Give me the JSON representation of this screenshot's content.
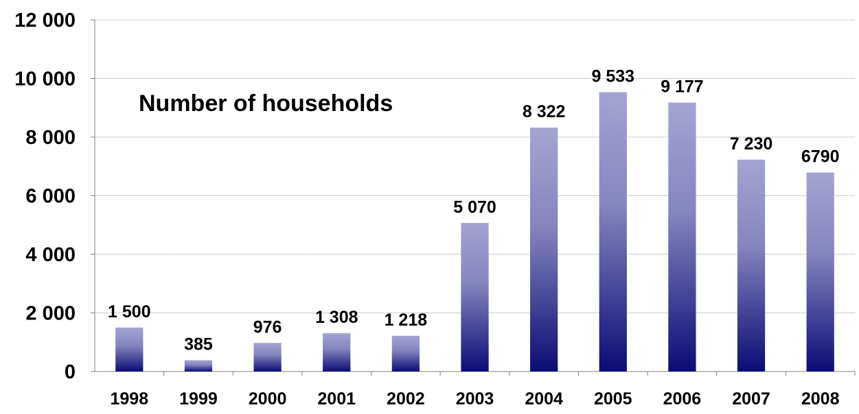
{
  "chart_data": {
    "type": "bar",
    "title": "Number of households",
    "categories": [
      "1998",
      "1999",
      "2000",
      "2001",
      "2002",
      "2003",
      "2004",
      "2005",
      "2006",
      "2007",
      "2008"
    ],
    "values": [
      1500,
      385,
      976,
      1308,
      1218,
      5070,
      8322,
      9533,
      9177,
      7230,
      6790
    ],
    "value_labels": [
      "1 500",
      "385",
      "976",
      "1 308",
      "1 218",
      "5 070",
      "8 322",
      "9 533",
      "9 177",
      "7 230",
      "6790"
    ],
    "ylim": [
      0,
      12000
    ],
    "yticks": [
      0,
      2000,
      4000,
      6000,
      8000,
      10000,
      12000
    ],
    "ytick_labels": [
      "0",
      "2 000",
      "4 000",
      "6 000",
      "8 000",
      "10 000",
      "12 000"
    ],
    "xlabel": "",
    "ylabel": "",
    "grid": true,
    "legend": "none",
    "colors": {
      "bar_top": "#a3a3d3",
      "bar_bottom": "#0b0b76",
      "gridline": "#9a9a9a",
      "axis": "#808080",
      "text": "#000000"
    }
  }
}
